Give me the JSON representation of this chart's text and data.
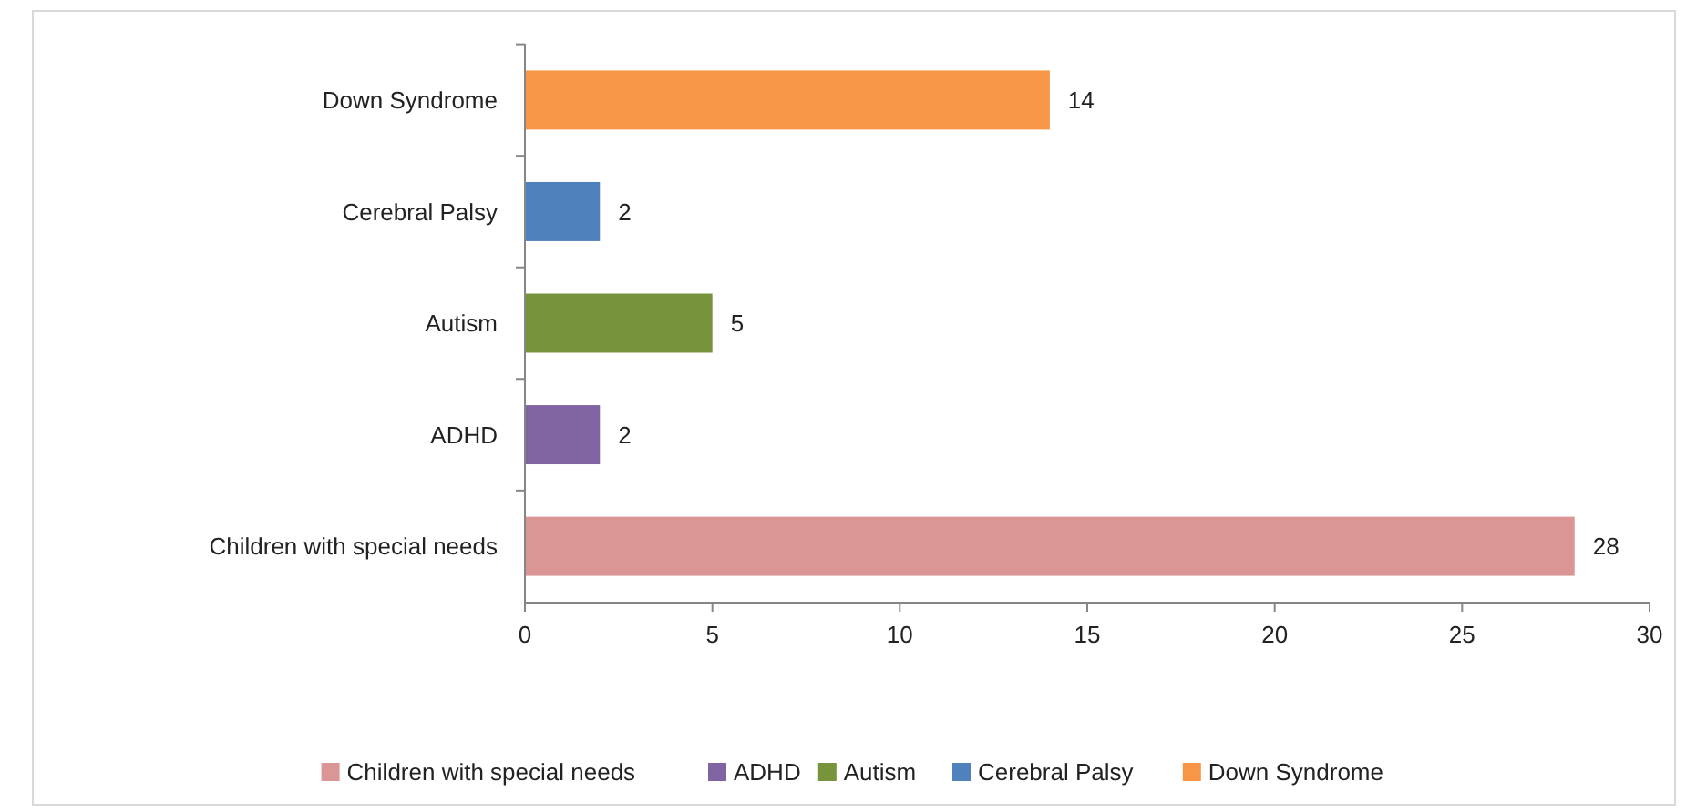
{
  "chart_data": {
    "type": "bar",
    "orientation": "horizontal",
    "categories": [
      "Down Syndrome",
      "Cerebral Palsy",
      "Autism",
      "ADHD",
      "Children with special needs"
    ],
    "series": [
      {
        "name": "Children with special needs",
        "color": "#d99694",
        "values": [
          null,
          null,
          null,
          null,
          28
        ]
      },
      {
        "name": "ADHD",
        "color": "#8064a2",
        "values": [
          null,
          null,
          null,
          2,
          null
        ]
      },
      {
        "name": "Autism",
        "color": "#77933c",
        "values": [
          null,
          null,
          5,
          null,
          null
        ]
      },
      {
        "name": "Cerebral Palsy",
        "color": "#4f81bd",
        "values": [
          null,
          2,
          null,
          null,
          null
        ]
      },
      {
        "name": "Down Syndrome",
        "color": "#f79646",
        "values": [
          14,
          null,
          null,
          null,
          null
        ]
      }
    ],
    "xlim": [
      0,
      30
    ],
    "xticks": [
      0,
      5,
      10,
      15,
      20,
      25,
      30
    ],
    "data_labels": true,
    "legend": "bottom",
    "grid": false
  }
}
